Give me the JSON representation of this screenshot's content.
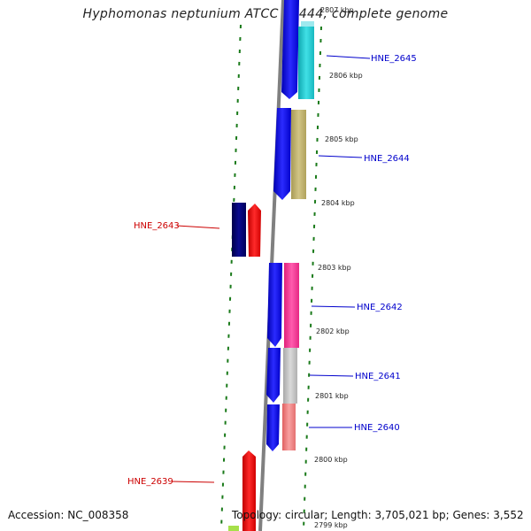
{
  "title": "Hyphomonas neptunium ATCC 15444, complete genome",
  "accession": "Accession: NC_008358",
  "summary": "Topology: circular; Length: 3,705,021 bp; Genes: 3,552",
  "ticks": [
    "2807 kbp",
    "2806 kbp",
    "2805 kbp",
    "2804 kbp",
    "2803 kbp",
    "2802 kbp",
    "2801 kbp",
    "2800 kbp",
    "2799 kbp"
  ],
  "genes": [
    {
      "label": "HNE_2645",
      "strand": "forward",
      "color": "#33cccc"
    },
    {
      "label": "HNE_2644",
      "strand": "forward",
      "color": "#bfb26b"
    },
    {
      "label": "HNE_2643",
      "strand": "reverse",
      "color": "#ff0000"
    },
    {
      "label": "HNE_2642",
      "strand": "forward",
      "color": "#ff3399"
    },
    {
      "label": "HNE_2641",
      "strand": "forward",
      "color": "#c0c0c0"
    },
    {
      "label": "HNE_2640",
      "strand": "forward",
      "color": "#f08080"
    },
    {
      "label": "HNE_2639",
      "strand": "reverse",
      "color": "#ff0000"
    }
  ],
  "colors": {
    "cds_forward": "#1a1aff",
    "cds_reverse": "#0a0a80",
    "backbone": "#808080",
    "tick_marks": "#1a7a1a",
    "label_forward": "#0000cc",
    "label_reverse": "#cc0000"
  }
}
